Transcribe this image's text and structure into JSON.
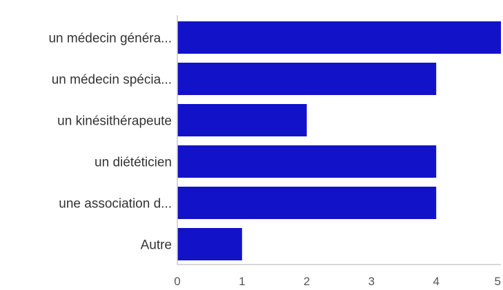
{
  "chart_data": {
    "type": "bar",
    "orientation": "horizontal",
    "categories": [
      "un médecin généra...",
      "un médecin spécia...",
      "un kinésithérapeute",
      "un diététicien",
      "une association d...",
      "Autre"
    ],
    "values": [
      5,
      4,
      2,
      4,
      4,
      1
    ],
    "xlim": [
      0,
      5
    ],
    "xticks": [
      "0",
      "1",
      "2",
      "3",
      "4",
      "5"
    ],
    "title": "",
    "xlabel": "",
    "ylabel": "",
    "grid": false,
    "legend": "none",
    "bar_color": "#1212c8",
    "axis_color": "#c8c8c8"
  }
}
